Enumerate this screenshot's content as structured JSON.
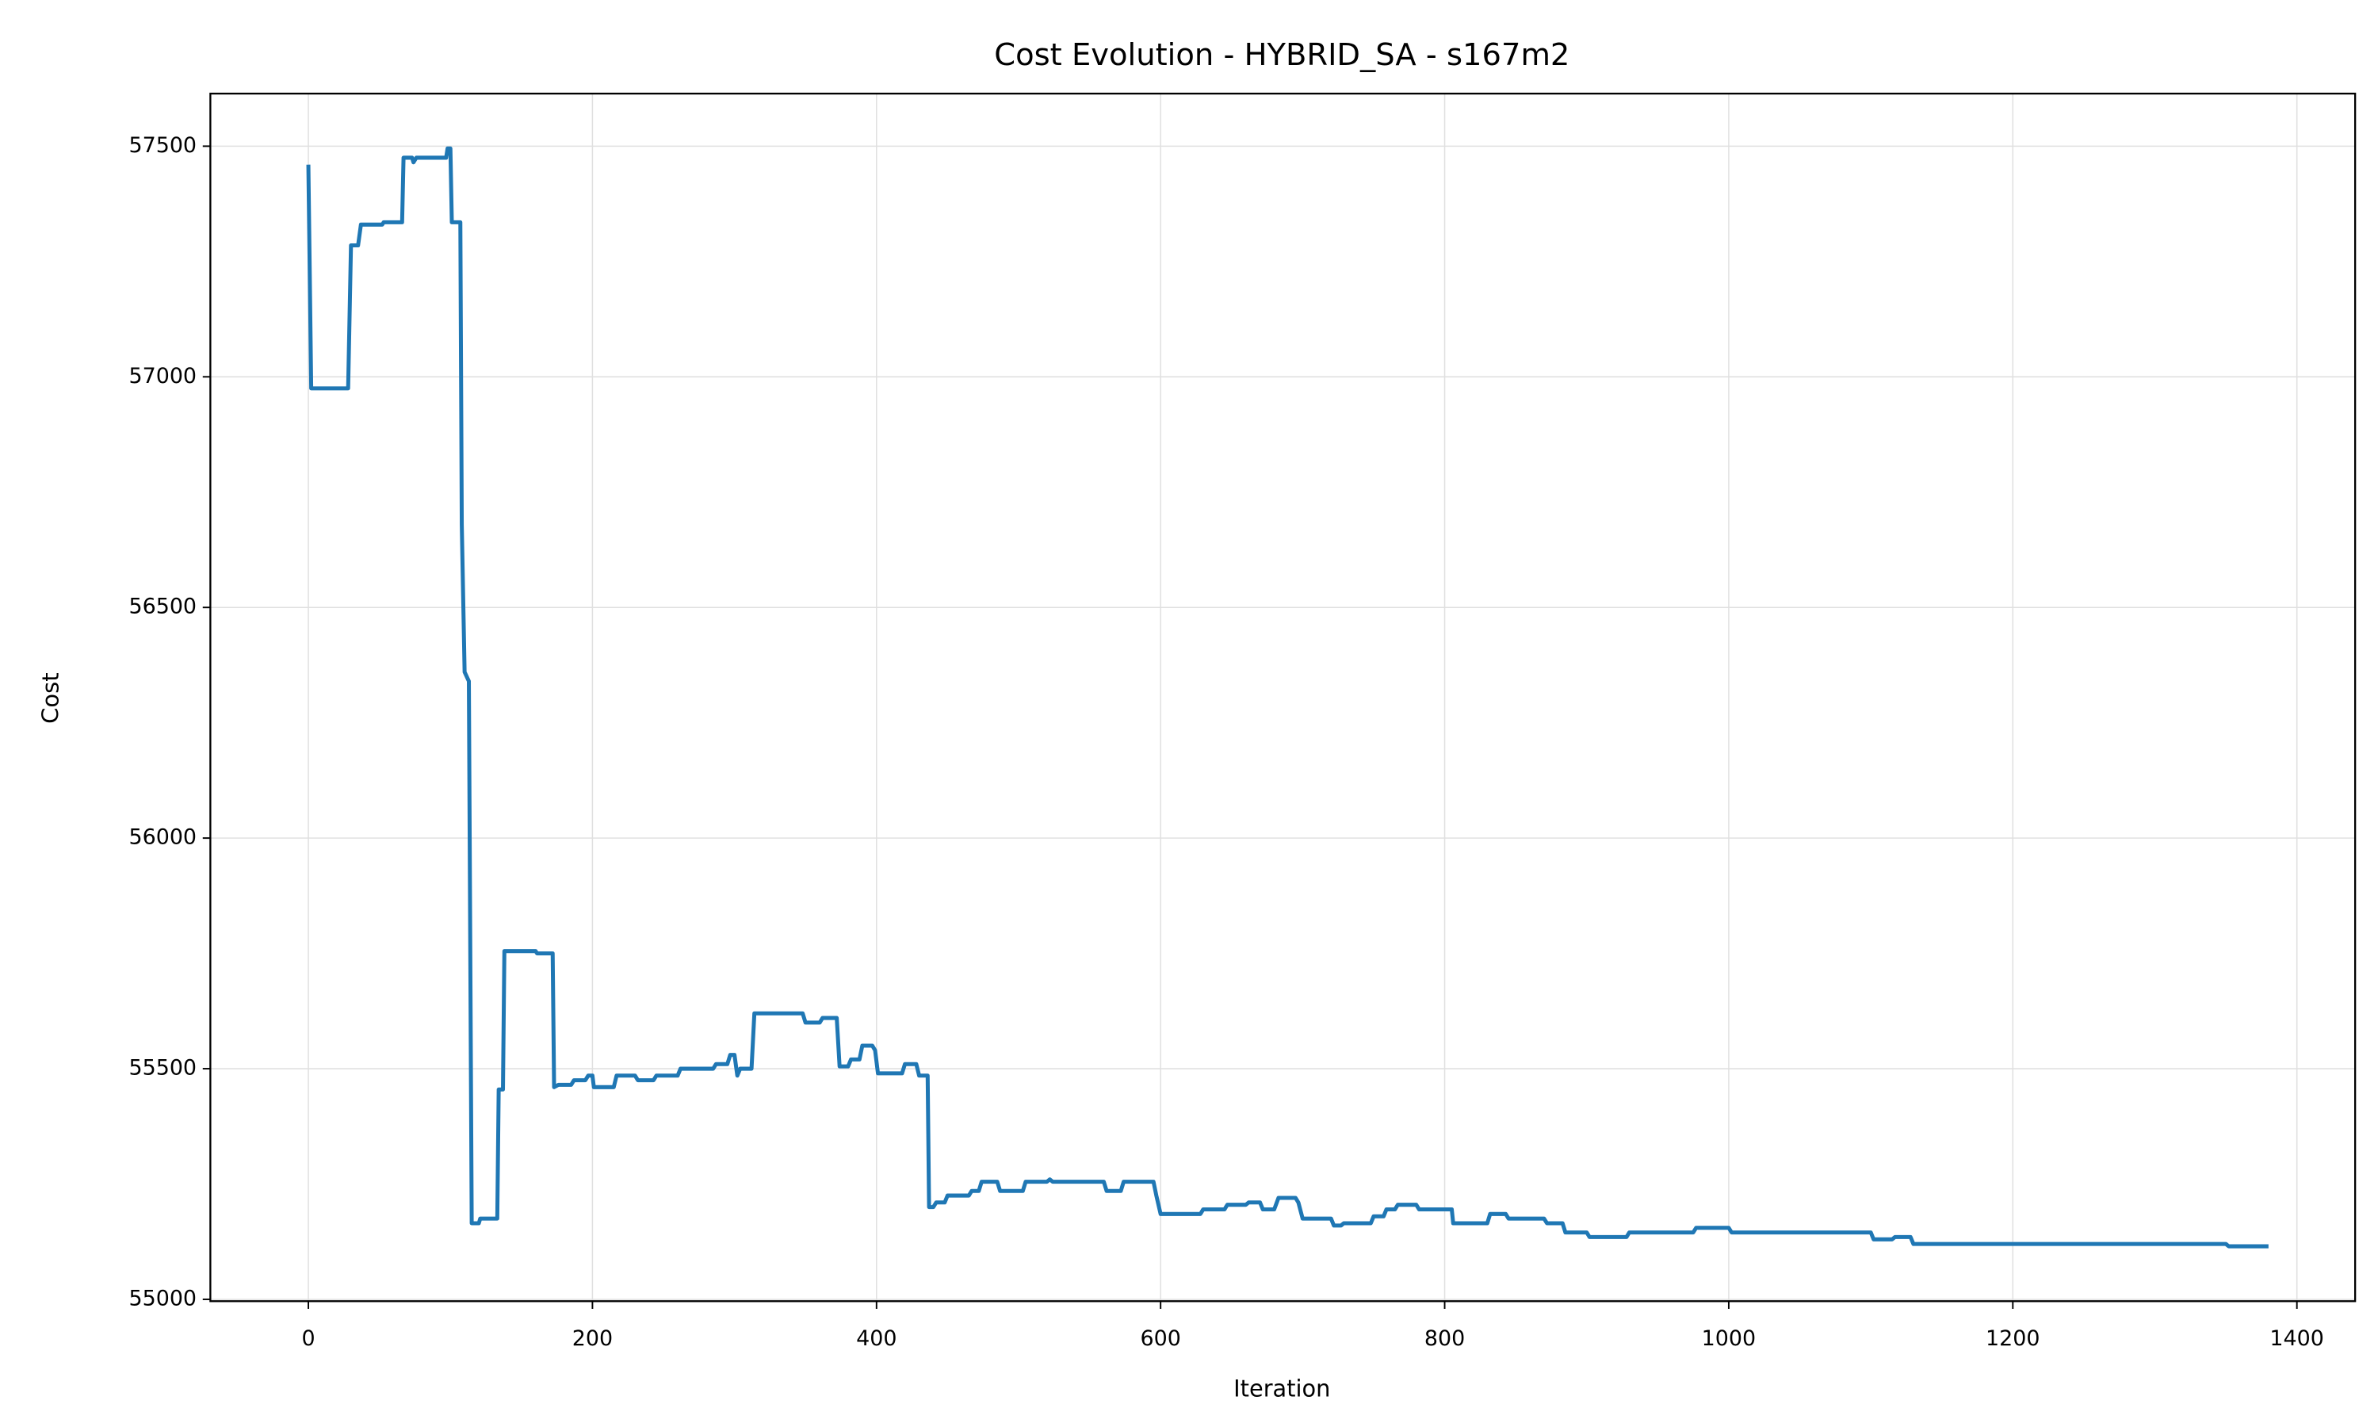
{
  "chart_data": {
    "type": "line",
    "title": "Cost Evolution - HYBRID_SA - s167m2",
    "x_label": "Iteration",
    "y_label": "Cost",
    "xlim": [
      -69,
      1441
    ],
    "ylim": [
      54996,
      57614
    ],
    "xticks": [
      0,
      200,
      400,
      600,
      800,
      1000,
      1200,
      1400
    ],
    "yticks": [
      55000,
      55500,
      56000,
      56500,
      57000,
      57500
    ],
    "grid": true,
    "series": [
      {
        "color": "#1f77b4",
        "x": [
          0,
          2,
          28,
          30,
          35,
          37,
          52,
          53,
          66,
          67,
          73,
          74,
          76,
          97,
          98,
          100,
          101,
          107,
          108,
          110,
          113,
          115,
          120,
          121,
          133,
          134,
          137,
          138,
          160,
          161,
          172,
          173,
          176,
          185,
          187,
          195,
          197,
          200,
          201,
          215,
          217,
          230,
          232,
          243,
          245,
          260,
          262,
          285,
          287,
          295,
          297,
          300,
          302,
          304,
          312,
          314,
          348,
          350,
          360,
          362,
          372,
          374,
          380,
          382,
          388,
          390,
          397,
          399,
          401,
          418,
          420,
          428,
          430,
          436,
          437,
          440,
          442,
          448,
          450,
          465,
          467,
          472,
          474,
          485,
          487,
          503,
          505,
          520,
          522,
          524,
          560,
          562,
          572,
          574,
          595,
          597,
          600,
          628,
          630,
          645,
          647,
          660,
          662,
          670,
          672,
          680,
          683,
          695,
          697,
          700,
          720,
          722,
          727,
          729,
          748,
          750,
          757,
          759,
          765,
          767,
          780,
          782,
          805,
          806,
          830,
          832,
          843,
          845,
          870,
          872,
          883,
          885,
          900,
          902,
          928,
          930,
          975,
          977,
          1000,
          1002,
          1100,
          1102,
          1115,
          1117,
          1128,
          1130,
          1350,
          1352,
          1380
        ],
        "values": [
          57460,
          56975,
          56975,
          57285,
          57285,
          57330,
          57330,
          57335,
          57335,
          57475,
          57475,
          57465,
          57475,
          57475,
          57495,
          57495,
          57335,
          57335,
          56680,
          56360,
          56340,
          55165,
          55165,
          55175,
          55175,
          55455,
          55455,
          55755,
          55755,
          55750,
          55750,
          55460,
          55465,
          55465,
          55475,
          55475,
          55485,
          55485,
          55460,
          55460,
          55485,
          55485,
          55475,
          55475,
          55485,
          55485,
          55500,
          55500,
          55510,
          55510,
          55530,
          55530,
          55485,
          55500,
          55500,
          55620,
          55620,
          55600,
          55600,
          55610,
          55610,
          55505,
          55505,
          55520,
          55520,
          55550,
          55550,
          55540,
          55490,
          55490,
          55510,
          55510,
          55485,
          55485,
          55200,
          55200,
          55210,
          55210,
          55225,
          55225,
          55235,
          55235,
          55255,
          55255,
          55235,
          55235,
          55255,
          55255,
          55260,
          55255,
          55255,
          55235,
          55235,
          55255,
          55255,
          55225,
          55185,
          55185,
          55195,
          55195,
          55205,
          55205,
          55210,
          55210,
          55195,
          55195,
          55220,
          55220,
          55210,
          55175,
          55175,
          55160,
          55160,
          55165,
          55165,
          55180,
          55180,
          55195,
          55195,
          55205,
          55205,
          55195,
          55195,
          55165,
          55165,
          55185,
          55185,
          55175,
          55175,
          55165,
          55165,
          55145,
          55145,
          55135,
          55135,
          55145,
          55145,
          55155,
          55155,
          55145,
          55145,
          55130,
          55130,
          55135,
          55135,
          55120,
          55120,
          55115,
          55115
        ]
      }
    ]
  }
}
